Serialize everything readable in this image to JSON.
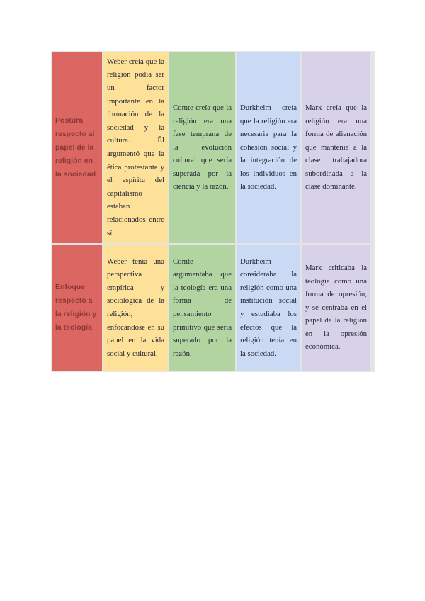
{
  "page": {
    "background_color": "#ffffff"
  },
  "table": {
    "description": "comparison-of-sociologists-on-religion",
    "gap_color": "#e4e4e4",
    "header_column_color": "#dc6662",
    "header_text_color": "#8e3b38",
    "body_text_color": "#232735",
    "column_colors": {
      "weber": "#fde199",
      "comte": "#b2d4a1",
      "durkheim": "#cad9f4",
      "marx": "#d7d2e8"
    },
    "rows": [
      {
        "header": "Postura respecto al papel de la religión en la sociedad",
        "weber": "Weber creía que la religión podía ser un factor importante en la formación de la sociedad y la cultura. Él argumentó que la ética protestante y el espíritu del capitalismo estaban relacionados entre sí.",
        "comte": "Comte creía que la religión era una fase temprana de la evolución cultural que sería superada por la ciencia y la razón.",
        "durkheim": "Durkheim creía que la religión era necesaria para la cohesión social y la integración de los individuos en la sociedad.",
        "marx": "Marx creía que la religión era una forma de alienación que mantenía a la clase trabajadora subordinada a la clase dominante."
      },
      {
        "header": "Enfoque respecto a la religión y la teología",
        "weber": "Weber tenía una perspectiva empírica y sociológica de la religión, enfocándose en su papel en la vida social y cultural.",
        "comte": "Comte argumentaba que la teología era una forma de pensamiento primitivo que sería superado por la razón.",
        "durkheim": "Durkheim consideraba la religión como una institución social y estudiaba los efectos que la religión tenía en la sociedad.",
        "marx": "Marx criticaba la teología como una forma de opresión, y se centraba en el papel de la religión en la opresión económica."
      }
    ]
  }
}
